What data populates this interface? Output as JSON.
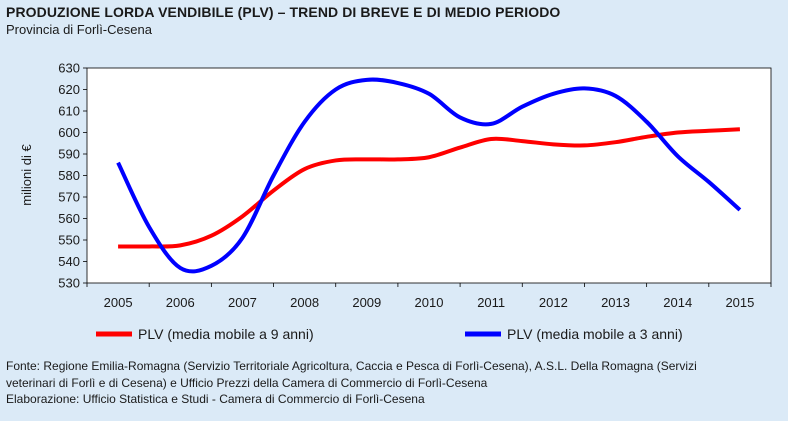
{
  "header": {
    "title": "PRODUZIONE LORDA VENDIBILE (PLV) – TREND DI BREVE E DI MEDIO PERIODO",
    "subtitle": "Provincia di Forlì-Cesena"
  },
  "chart_data": {
    "type": "line",
    "title": "PRODUZIONE LORDA VENDIBILE (PLV) – TREND DI BREVE E DI MEDIO PERIODO",
    "subtitle": "Provincia di Forlì-Cesena",
    "ylabel": "milioni di €",
    "xlabel": "",
    "ylim": [
      530,
      630
    ],
    "yticks": [
      530,
      540,
      550,
      560,
      570,
      580,
      590,
      600,
      610,
      620,
      630
    ],
    "xticks": [
      "2005",
      "2006",
      "2007",
      "2008",
      "2009",
      "2010",
      "2011",
      "2012",
      "2013",
      "2014",
      "2015"
    ],
    "grid": false,
    "legend_position": "bottom",
    "series": [
      {
        "name": "PLV (media mobile a 9 anni)",
        "color": "#ff0000",
        "points": [
          [
            2005,
            547
          ],
          [
            2005.5,
            547
          ],
          [
            2006,
            547.5
          ],
          [
            2006.5,
            552
          ],
          [
            2007,
            561
          ],
          [
            2007.5,
            573
          ],
          [
            2008,
            583
          ],
          [
            2008.5,
            587
          ],
          [
            2009,
            587.5
          ],
          [
            2009.5,
            587.5
          ],
          [
            2010,
            588.5
          ],
          [
            2010.5,
            593
          ],
          [
            2011,
            597
          ],
          [
            2011.5,
            596
          ],
          [
            2012,
            594.5
          ],
          [
            2012.5,
            594
          ],
          [
            2013,
            595.5
          ],
          [
            2013.5,
            598
          ],
          [
            2014,
            600
          ],
          [
            2014.5,
            600.8
          ],
          [
            2015,
            601.5
          ]
        ]
      },
      {
        "name": "PLV (media mobile a 3 anni)",
        "color": "#0000ff",
        "points": [
          [
            2005,
            586
          ],
          [
            2005.5,
            556
          ],
          [
            2006,
            537
          ],
          [
            2006.5,
            538
          ],
          [
            2007,
            551
          ],
          [
            2007.5,
            580
          ],
          [
            2008,
            605
          ],
          [
            2008.5,
            620
          ],
          [
            2009,
            624.5
          ],
          [
            2009.5,
            623
          ],
          [
            2010,
            618
          ],
          [
            2010.5,
            607
          ],
          [
            2011,
            604
          ],
          [
            2011.5,
            612
          ],
          [
            2012,
            618
          ],
          [
            2012.5,
            620.5
          ],
          [
            2013,
            617
          ],
          [
            2013.5,
            605
          ],
          [
            2014,
            589
          ],
          [
            2014.5,
            577
          ],
          [
            2015,
            564
          ]
        ]
      }
    ]
  },
  "footer": {
    "line1": "Fonte: Regione Emilia-Romagna (Servizio Territoriale Agricoltura, Caccia e Pesca di Forlì-Cesena), A.S.L. Della Romagna (Servizi",
    "line2": "veterinari di Forlì e di Cesena) e Ufficio Prezzi della Camera di Commercio di Forlì-Cesena",
    "line3": "Elaborazione: Ufficio Statistica e Studi - Camera di Commercio di Forlì-Cesena"
  }
}
